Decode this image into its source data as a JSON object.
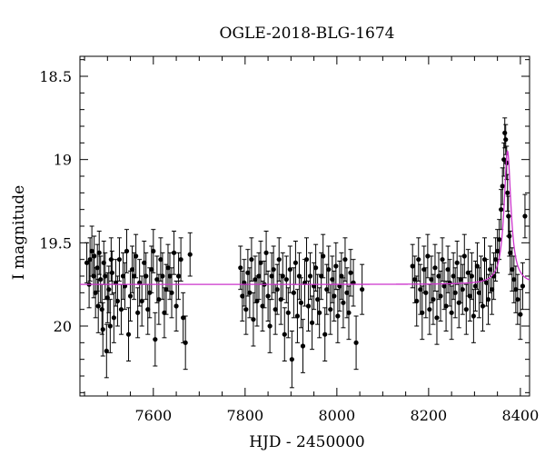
{
  "chart_data": {
    "type": "scatter",
    "title": "OGLE-2018-BLG-1674",
    "xlabel": "HJD - 2450000",
    "ylabel": "I magnitude",
    "xlim": [
      7440,
      8420
    ],
    "ylim": [
      20.42,
      18.38
    ],
    "y_inverted": true,
    "xticks": [
      7600,
      7800,
      8000,
      8200,
      8400
    ],
    "xtick_labels": [
      "7600",
      "7800",
      "8000",
      "8200",
      "8400"
    ],
    "yticks": [
      18.5,
      19,
      19.5,
      20
    ],
    "ytick_labels": [
      "18.5",
      "19",
      "19.5",
      "20"
    ],
    "grid": false,
    "colors": {
      "points": "#000000",
      "model": "#cc33cc",
      "axes": "#000000"
    },
    "series": [
      {
        "kind": "observations",
        "x": [
          7455,
          7460,
          7462,
          7466,
          7470,
          7471,
          7474,
          7478,
          7480,
          7482,
          7485,
          7488,
          7490,
          7492,
          7495,
          7498,
          7500,
          7503,
          7506,
          7508,
          7510,
          7514,
          7518,
          7522,
          7526,
          7530,
          7534,
          7538,
          7542,
          7546,
          7550,
          7554,
          7558,
          7562,
          7566,
          7570,
          7575,
          7580,
          7584,
          7588,
          7592,
          7596,
          7600,
          7604,
          7608,
          7612,
          7616,
          7620,
          7624,
          7628,
          7632,
          7636,
          7640,
          7645,
          7650,
          7655,
          7660,
          7665,
          7670,
          7680,
          7790,
          7794,
          7798,
          7802,
          7806,
          7810,
          7814,
          7818,
          7822,
          7826,
          7830,
          7834,
          7838,
          7842,
          7846,
          7850,
          7854,
          7858,
          7862,
          7866,
          7870,
          7874,
          7878,
          7882,
          7886,
          7890,
          7894,
          7898,
          7902,
          7906,
          7910,
          7914,
          7918,
          7922,
          7926,
          7930,
          7934,
          7938,
          7942,
          7946,
          7950,
          7954,
          7958,
          7962,
          7966,
          7970,
          7974,
          7978,
          7982,
          7986,
          7990,
          7994,
          7998,
          8002,
          8006,
          8010,
          8014,
          8018,
          8022,
          8026,
          8030,
          8036,
          8042,
          8055,
          8165,
          8170,
          8174,
          8178,
          8182,
          8186,
          8190,
          8194,
          8198,
          8202,
          8206,
          8210,
          8214,
          8218,
          8222,
          8226,
          8230,
          8234,
          8238,
          8242,
          8246,
          8250,
          8254,
          8258,
          8262,
          8266,
          8270,
          8274,
          8278,
          8282,
          8286,
          8290,
          8294,
          8298,
          8302,
          8306,
          8310,
          8314,
          8318,
          8322,
          8326,
          8330,
          8334,
          8338,
          8342,
          8346,
          8350,
          8354,
          8358,
          8361,
          8364,
          8366,
          8368,
          8370,
          8372,
          8374,
          8376,
          8378,
          8382,
          8386,
          8390,
          8394,
          8400,
          8405,
          8410
        ],
        "y": [
          19.62,
          19.75,
          19.6,
          19.55,
          19.7,
          19.58,
          19.8,
          19.65,
          19.88,
          19.56,
          19.72,
          19.9,
          20.02,
          19.62,
          19.7,
          20.15,
          19.83,
          19.78,
          20.0,
          19.6,
          19.68,
          19.95,
          19.74,
          19.85,
          19.6,
          19.9,
          19.7,
          19.76,
          19.55,
          20.05,
          19.82,
          19.66,
          19.7,
          19.58,
          19.92,
          19.74,
          19.85,
          19.62,
          19.7,
          19.9,
          19.8,
          19.66,
          19.55,
          20.08,
          19.72,
          19.84,
          19.6,
          19.7,
          19.92,
          19.78,
          19.65,
          19.7,
          19.8,
          19.56,
          19.88,
          19.7,
          19.6,
          19.95,
          20.1,
          19.57,
          19.65,
          19.82,
          19.74,
          19.9,
          19.68,
          19.8,
          19.6,
          19.96,
          19.72,
          19.85,
          19.7,
          19.62,
          19.88,
          19.75,
          19.56,
          19.82,
          20.0,
          19.7,
          19.66,
          19.9,
          19.78,
          19.6,
          19.84,
          19.7,
          20.05,
          19.72,
          19.92,
          19.66,
          20.2,
          19.8,
          19.62,
          19.94,
          19.7,
          19.86,
          20.12,
          19.74,
          19.6,
          19.88,
          19.7,
          19.98,
          19.76,
          19.65,
          19.84,
          19.92,
          19.7,
          19.58,
          20.05,
          19.78,
          19.66,
          19.9,
          19.72,
          19.82,
          19.64,
          19.94,
          19.76,
          19.7,
          19.86,
          19.6,
          19.8,
          19.92,
          19.68,
          19.74,
          20.1,
          19.78,
          19.64,
          19.72,
          19.85,
          19.6,
          19.78,
          19.92,
          19.66,
          19.8,
          19.58,
          19.9,
          19.72,
          19.84,
          19.65,
          19.95,
          19.7,
          19.82,
          19.6,
          19.76,
          19.88,
          19.66,
          19.74,
          19.92,
          19.7,
          19.8,
          19.62,
          19.86,
          19.72,
          19.78,
          19.58,
          19.9,
          19.68,
          19.82,
          19.7,
          19.94,
          19.76,
          19.64,
          19.8,
          19.72,
          19.88,
          19.6,
          19.74,
          19.84,
          19.66,
          19.78,
          19.7,
          19.6,
          19.55,
          19.48,
          19.3,
          19.16,
          19.0,
          18.84,
          18.88,
          19.02,
          19.2,
          19.34,
          19.46,
          19.56,
          19.66,
          19.72,
          19.78,
          19.84,
          19.93,
          19.76,
          19.34
        ],
        "yerr": [
          0.12,
          0.14,
          0.13,
          0.15,
          0.13,
          0.12,
          0.15,
          0.14,
          0.16,
          0.13,
          0.14,
          0.15,
          0.16,
          0.13,
          0.14,
          0.16,
          0.15,
          0.14,
          0.16,
          0.13,
          0.13,
          0.15,
          0.14,
          0.15,
          0.13,
          0.15,
          0.14,
          0.14,
          0.13,
          0.16,
          0.15,
          0.14,
          0.14,
          0.13,
          0.15,
          0.14,
          0.15,
          0.13,
          0.14,
          0.15,
          0.15,
          0.14,
          0.13,
          0.16,
          0.14,
          0.15,
          0.13,
          0.14,
          0.15,
          0.15,
          0.14,
          0.14,
          0.15,
          0.13,
          0.15,
          0.14,
          0.13,
          0.15,
          0.16,
          0.13,
          0.13,
          0.15,
          0.14,
          0.15,
          0.14,
          0.15,
          0.13,
          0.16,
          0.14,
          0.15,
          0.14,
          0.13,
          0.15,
          0.14,
          0.13,
          0.15,
          0.16,
          0.14,
          0.14,
          0.15,
          0.15,
          0.13,
          0.15,
          0.14,
          0.16,
          0.14,
          0.15,
          0.14,
          0.17,
          0.15,
          0.13,
          0.16,
          0.14,
          0.15,
          0.16,
          0.14,
          0.13,
          0.15,
          0.14,
          0.16,
          0.14,
          0.14,
          0.15,
          0.15,
          0.14,
          0.13,
          0.16,
          0.15,
          0.14,
          0.15,
          0.14,
          0.15,
          0.14,
          0.16,
          0.15,
          0.14,
          0.15,
          0.13,
          0.15,
          0.16,
          0.14,
          0.14,
          0.16,
          0.15,
          0.13,
          0.14,
          0.15,
          0.13,
          0.15,
          0.16,
          0.14,
          0.15,
          0.13,
          0.15,
          0.14,
          0.15,
          0.14,
          0.16,
          0.14,
          0.15,
          0.13,
          0.14,
          0.15,
          0.14,
          0.14,
          0.16,
          0.14,
          0.15,
          0.13,
          0.15,
          0.14,
          0.15,
          0.13,
          0.15,
          0.14,
          0.15,
          0.14,
          0.16,
          0.15,
          0.14,
          0.15,
          0.14,
          0.15,
          0.13,
          0.14,
          0.15,
          0.14,
          0.15,
          0.14,
          0.13,
          0.13,
          0.12,
          0.12,
          0.11,
          0.1,
          0.09,
          0.09,
          0.1,
          0.11,
          0.12,
          0.12,
          0.13,
          0.13,
          0.14,
          0.14,
          0.15,
          0.15,
          0.14,
          0.13
        ]
      },
      {
        "kind": "model",
        "baseline": 19.75,
        "peak_t": 8372,
        "peak_mag": 18.95,
        "t_e": 9
      }
    ]
  }
}
